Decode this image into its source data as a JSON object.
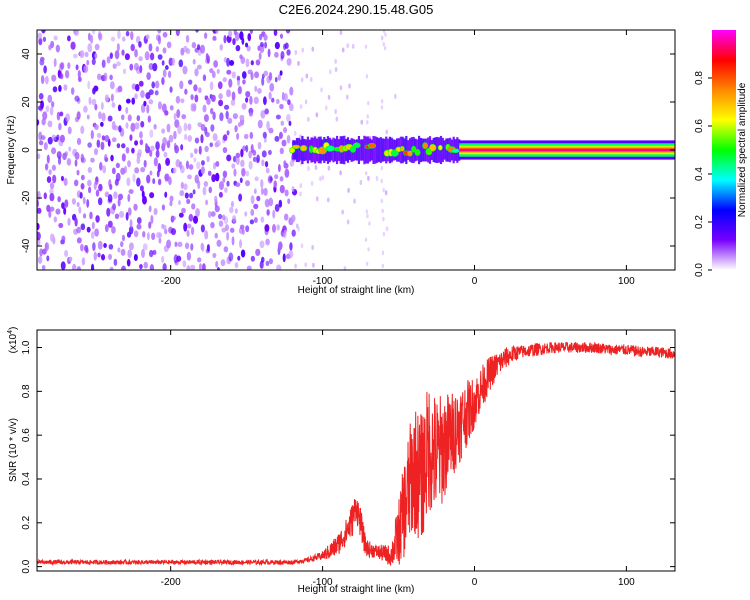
{
  "figure": {
    "title": "C2E6.2024.290.15.48.G05"
  },
  "chart_data": [
    {
      "type": "heatmap",
      "title": "",
      "xlabel": "Height of straight line (km)",
      "ylabel": "Frequency (Hz)",
      "xlim": [
        -288,
        132
      ],
      "ylim": [
        -50,
        50
      ],
      "x_ticks": [
        -200,
        -100,
        0,
        100
      ],
      "x_tick_labels": [
        "-200",
        "-100",
        "0",
        "100"
      ],
      "y_ticks": [
        -40,
        -20,
        0,
        20,
        40
      ],
      "y_tick_labels": [
        "-40",
        "-20",
        "0",
        "20",
        "40"
      ],
      "colorbar": {
        "label": "Normalized spectral amplitude",
        "range": [
          0.0,
          1.0
        ],
        "ticks": [
          0.0,
          0.2,
          0.4,
          0.6,
          0.8
        ],
        "tick_labels": [
          "0.0",
          "0.2",
          "0.4",
          "0.6",
          "0.8"
        ],
        "colormap": [
          "#ffffff",
          "#7700ff",
          "#0000ff",
          "#00ffff",
          "#00ff00",
          "#ffff00",
          "#ff8800",
          "#ff0000",
          "#ff00ff"
        ]
      },
      "regions": [
        {
          "name": "noise",
          "x_range": [
            -288,
            -120
          ],
          "freq_range": [
            -50,
            50
          ],
          "amplitude": 0.05
        },
        {
          "name": "faint noise",
          "x_range": [
            -120,
            -50
          ],
          "freq_range": [
            -50,
            50
          ],
          "amplitude": 0.02
        },
        {
          "name": "signal onset",
          "x_range": [
            -120,
            -10
          ],
          "freq_center": 0,
          "freq_halfwidth": 4,
          "amplitude": 0.3
        },
        {
          "name": "carrier",
          "x_range": [
            -10,
            132
          ],
          "freq_center": 0,
          "freq_halfwidth": 1.5,
          "amplitude": 0.95
        }
      ]
    },
    {
      "type": "line",
      "title": "",
      "xlabel": "Height of straight line (km)",
      "ylabel": "SNR (10 * v/v)",
      "y_multiplier_label": "(x10",
      "y_multiplier_exponent": "4",
      "xlim": [
        -288,
        132
      ],
      "ylim": [
        -0.02,
        1.08
      ],
      "x_ticks": [
        -200,
        -100,
        0,
        100
      ],
      "x_tick_labels": [
        "-200",
        "-100",
        "0",
        "100"
      ],
      "y_ticks": [
        0.0,
        0.2,
        0.4,
        0.6,
        0.8,
        1.0
      ],
      "y_tick_labels": [
        "0.0",
        "0.2",
        "0.4",
        "0.6",
        "0.8",
        "1.0"
      ],
      "line_color": "#ee2222",
      "series": [
        {
          "x": [
            -288,
            -250,
            -200,
            -150,
            -120,
            -110,
            -100,
            -95,
            -90,
            -85,
            -80,
            -78,
            -75,
            -72,
            -70,
            -65,
            -60,
            -55,
            -50,
            -45,
            -40,
            -35,
            -30,
            -25,
            -20,
            -15,
            -10,
            -5,
            0,
            5,
            10,
            15,
            20,
            25,
            30,
            40,
            50,
            60,
            70,
            80,
            90,
            100,
            110,
            120,
            132
          ],
          "y": [
            0.02,
            0.02,
            0.02,
            0.02,
            0.02,
            0.03,
            0.05,
            0.07,
            0.1,
            0.15,
            0.22,
            0.28,
            0.2,
            0.1,
            0.08,
            0.07,
            0.06,
            0.05,
            0.15,
            0.3,
            0.45,
            0.4,
            0.55,
            0.5,
            0.55,
            0.6,
            0.65,
            0.7,
            0.75,
            0.82,
            0.88,
            0.92,
            0.95,
            0.97,
            0.98,
            0.99,
            1.0,
            1.0,
            1.0,
            1.0,
            0.99,
            0.99,
            0.98,
            0.98,
            0.97
          ],
          "noise_amplitude": [
            0.01,
            0.01,
            0.01,
            0.01,
            0.01,
            0.01,
            0.02,
            0.04,
            0.05,
            0.06,
            0.08,
            0.07,
            0.07,
            0.05,
            0.04,
            0.03,
            0.04,
            0.05,
            0.15,
            0.25,
            0.3,
            0.3,
            0.3,
            0.28,
            0.25,
            0.2,
            0.18,
            0.15,
            0.12,
            0.1,
            0.08,
            0.06,
            0.05,
            0.04,
            0.03,
            0.03,
            0.025,
            0.025,
            0.025,
            0.025,
            0.025,
            0.025,
            0.025,
            0.025,
            0.025
          ]
        }
      ]
    }
  ]
}
